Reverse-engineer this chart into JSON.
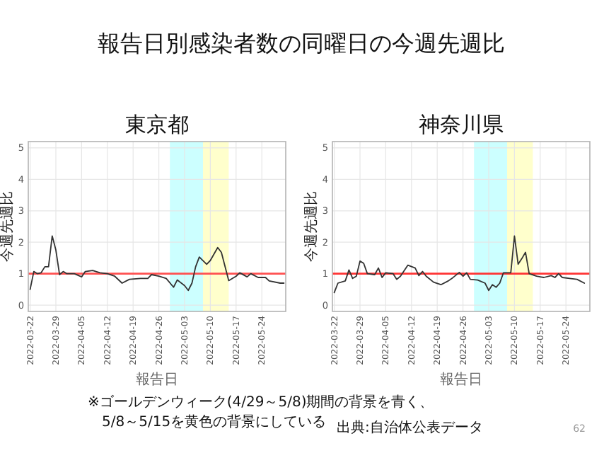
{
  "chart_data": [
    {
      "type": "line",
      "title": "東京都",
      "xlabel": "報告日",
      "ylabel": "今週先週比",
      "grid": true,
      "xlim": [
        "2022-03-21T12:00",
        "2022-05-30T12:00"
      ],
      "ylim": [
        -0.2,
        5.2
      ],
      "yticks": [
        0,
        1,
        2,
        3,
        4,
        5
      ],
      "xticks": [
        "2022-03-22",
        "2022-03-29",
        "2022-04-05",
        "2022-04-12",
        "2022-04-19",
        "2022-04-26",
        "2022-05-03",
        "2022-05-10",
        "2022-05-17",
        "2022-05-24"
      ],
      "bands": [
        {
          "axis": "x",
          "from": "2022-04-29",
          "to": "2022-05-08",
          "color": "#ccffff"
        },
        {
          "axis": "x",
          "from": "2022-05-08",
          "to": "2022-05-15",
          "color": "#ffffcc"
        }
      ],
      "ref_lines": [
        {
          "axis": "y",
          "value": 1,
          "color": "#ff5050"
        }
      ],
      "series": [
        {
          "color": "#333333",
          "x": [
            "2022-03-22",
            "2022-03-23",
            "2022-03-24",
            "2022-03-25",
            "2022-03-26",
            "2022-03-27",
            "2022-03-28",
            "2022-03-29",
            "2022-03-30",
            "2022-03-31",
            "2022-04-01",
            "2022-04-03",
            "2022-04-05",
            "2022-04-06",
            "2022-04-08",
            "2022-04-10",
            "2022-04-12",
            "2022-04-14",
            "2022-04-16",
            "2022-04-18",
            "2022-04-21",
            "2022-04-23",
            "2022-04-24",
            "2022-04-26",
            "2022-04-28",
            "2022-04-30",
            "2022-05-01",
            "2022-05-03",
            "2022-05-04",
            "2022-05-05",
            "2022-05-06",
            "2022-05-07",
            "2022-05-09",
            "2022-05-10",
            "2022-05-12",
            "2022-05-13",
            "2022-05-15",
            "2022-05-17",
            "2022-05-18",
            "2022-05-20",
            "2022-05-21",
            "2022-05-23",
            "2022-05-25",
            "2022-05-26",
            "2022-05-29",
            "2022-05-30"
          ],
          "values": [
            0.5,
            1.07,
            1.0,
            1.03,
            1.22,
            1.22,
            2.2,
            1.75,
            0.97,
            1.07,
            1.0,
            1.0,
            0.9,
            1.07,
            1.1,
            1.03,
            1.0,
            0.92,
            0.7,
            0.82,
            0.85,
            0.85,
            0.97,
            0.92,
            0.85,
            0.57,
            0.8,
            0.62,
            0.47,
            0.7,
            1.22,
            1.53,
            1.3,
            1.42,
            1.83,
            1.68,
            0.78,
            0.92,
            1.03,
            0.9,
            1.0,
            0.88,
            0.88,
            0.77,
            0.7,
            0.7
          ]
        }
      ]
    },
    {
      "type": "line",
      "title": "神奈川県",
      "xlabel": "報告日",
      "ylabel": "今週先週比",
      "grid": true,
      "xlim": [
        "2022-03-21T12:00",
        "2022-05-30T12:00"
      ],
      "ylim": [
        -0.2,
        5.2
      ],
      "yticks": [
        0,
        1,
        2,
        3,
        4,
        5
      ],
      "xticks": [
        "2022-03-22",
        "2022-03-29",
        "2022-04-05",
        "2022-04-12",
        "2022-04-19",
        "2022-04-26",
        "2022-05-03",
        "2022-05-10",
        "2022-05-17",
        "2022-05-24"
      ],
      "bands": [
        {
          "axis": "x",
          "from": "2022-04-29",
          "to": "2022-05-08",
          "color": "#ccffff"
        },
        {
          "axis": "x",
          "from": "2022-05-08",
          "to": "2022-05-15",
          "color": "#ffffcc"
        }
      ],
      "ref_lines": [
        {
          "axis": "y",
          "value": 1,
          "color": "#ff3333"
        }
      ],
      "series": [
        {
          "color": "#333333",
          "x": [
            "2022-03-22",
            "2022-03-23",
            "2022-03-25",
            "2022-03-26",
            "2022-03-27",
            "2022-03-28",
            "2022-03-29",
            "2022-03-30",
            "2022-03-31",
            "2022-04-02",
            "2022-04-03",
            "2022-04-04",
            "2022-04-05",
            "2022-04-07",
            "2022-04-08",
            "2022-04-09",
            "2022-04-11",
            "2022-04-13",
            "2022-04-14",
            "2022-04-15",
            "2022-04-16",
            "2022-04-18",
            "2022-04-20",
            "2022-04-22",
            "2022-04-23",
            "2022-04-25",
            "2022-04-26",
            "2022-04-27",
            "2022-04-28",
            "2022-04-30",
            "2022-05-02",
            "2022-05-03",
            "2022-05-04",
            "2022-05-05",
            "2022-05-06",
            "2022-05-07",
            "2022-05-09",
            "2022-05-10",
            "2022-05-11",
            "2022-05-12",
            "2022-05-13",
            "2022-05-14",
            "2022-05-16",
            "2022-05-18",
            "2022-05-20",
            "2022-05-21",
            "2022-05-22",
            "2022-05-23",
            "2022-05-25",
            "2022-05-27",
            "2022-05-29"
          ],
          "values": [
            0.4,
            0.7,
            0.77,
            1.12,
            0.85,
            0.92,
            1.4,
            1.33,
            1.0,
            0.97,
            1.18,
            0.88,
            1.03,
            1.0,
            0.82,
            0.92,
            1.27,
            1.18,
            0.94,
            1.07,
            0.92,
            0.73,
            0.65,
            0.77,
            0.85,
            1.04,
            0.92,
            1.03,
            0.82,
            0.8,
            0.7,
            0.47,
            0.65,
            0.57,
            0.7,
            1.03,
            1.03,
            2.2,
            1.3,
            1.48,
            1.68,
            1.0,
            0.92,
            0.88,
            0.94,
            0.88,
            1.0,
            0.88,
            0.85,
            0.82,
            0.7
          ]
        }
      ]
    },
    {
      "type": "other",
      "title": "報告日別感染者数の同曜日の今週先週比",
      "annotations": [
        "※ゴールデンウィーク(4/29～5/8)期間の背景を青く、",
        "5/8～5/15を黄色の背景にしている",
        "出典:自治体公表データ",
        "62"
      ]
    }
  ]
}
